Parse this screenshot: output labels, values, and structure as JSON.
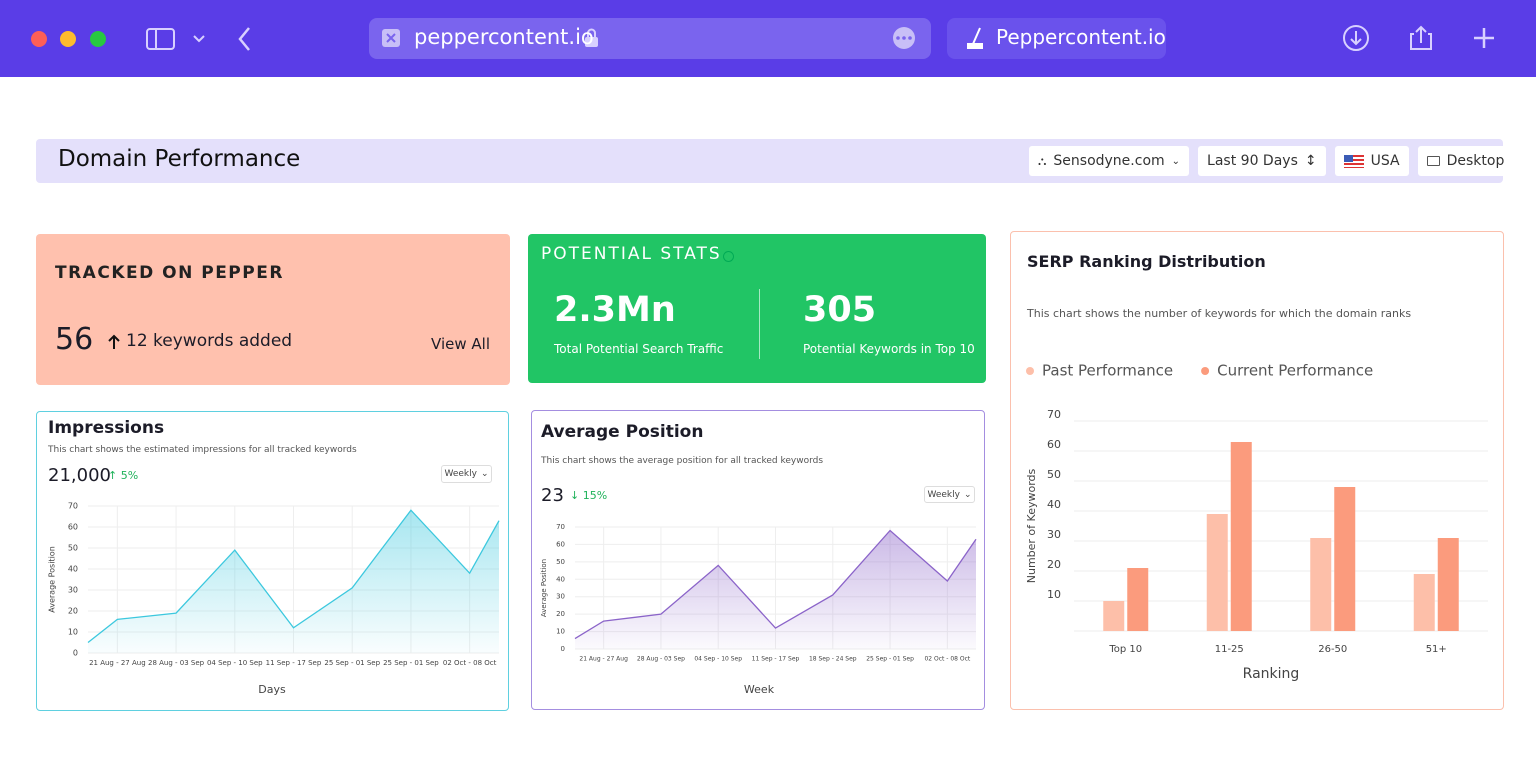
{
  "browser": {
    "url": "peppercontent.io",
    "tab": "Peppercontent.io"
  },
  "header": {
    "title": "Domain Performance",
    "filters": [
      "Sensodyne.com",
      "Last 90 Days",
      "USA",
      "Desktop"
    ]
  },
  "tracked": {
    "title": "TRACKED ON PEPPER",
    "count": 56,
    "added": "12 keywords added",
    "link": "View All"
  },
  "potential": {
    "title": "POTENTIAL STATS",
    "stats": [
      {
        "value": "2.3Mn",
        "label": "Total Potential Search Traffic"
      },
      {
        "value": 305,
        "label": "Potential Keywords in Top 10"
      }
    ]
  },
  "impressions": {
    "type": "line",
    "title": "Impressions",
    "subtitle": "This chart shows the estimated impressions for all tracked keywords",
    "total": "21,000",
    "change": "5%",
    "period": "Weekly",
    "y_label": "Average Position",
    "x_label": "Days",
    "categories": [
      null,
      "21 Aug - 27 Aug",
      "28 Aug - 03 Sep",
      "04 Sep - 10 Sep",
      "11 Sep - 17 Sep",
      "25 Sep - 01 Sep",
      "25 Sep - 01 Sep",
      "02 Oct - 08 Oct",
      null
    ],
    "values": [
      5,
      16,
      19,
      49,
      12,
      31,
      68,
      38,
      63
    ],
    "color": "#3cc8de",
    "ylim": [
      0,
      70
    ],
    "yticks": [
      0,
      10,
      20,
      30,
      40,
      50,
      60,
      70
    ],
    "grid": true
  },
  "average_position": {
    "type": "line",
    "title": "Average Position",
    "subtitle": "This chart shows the average position for all tracked keywords",
    "total": 23,
    "change": "15%",
    "period": "Weekly",
    "y_label": "Average Position",
    "x_label": "Week",
    "categories": [
      null,
      "21 Aug - 27 Aug",
      "28 Aug - 03 Sep",
      "04 Sep - 10 Sep",
      "11 Sep - 17 Sep",
      "18 Sep - 24 Sep",
      "25 Sep - 01 Sep",
      "02 Oct - 08 Oct",
      null
    ],
    "values": [
      6,
      16,
      20,
      48,
      12,
      31,
      68,
      39,
      63
    ],
    "color": "#8b64c9",
    "ylim": [
      0,
      70
    ],
    "yticks": [
      0,
      10,
      20,
      30,
      40,
      50,
      60,
      70
    ],
    "grid": true
  },
  "serp": {
    "type": "bar",
    "title": "SERP Ranking Distribution",
    "subtitle": "This chart shows the number of keywords for which the domain ranks",
    "y_label": "Number of Keywords",
    "x_label": "Ranking",
    "categories": [
      "Top 10",
      "11-25",
      "26-50",
      "51+"
    ],
    "series": [
      {
        "name": "Past Performance",
        "color": "#fdbfa9",
        "values": [
          10,
          39,
          31,
          19
        ]
      },
      {
        "name": "Current Performance",
        "color": "#fb9b7d",
        "values": [
          21,
          63,
          48,
          31
        ]
      }
    ],
    "ylim": [
      0,
      70
    ],
    "yticks": [
      10,
      20,
      30,
      40,
      50,
      60,
      70
    ],
    "grid": true
  }
}
